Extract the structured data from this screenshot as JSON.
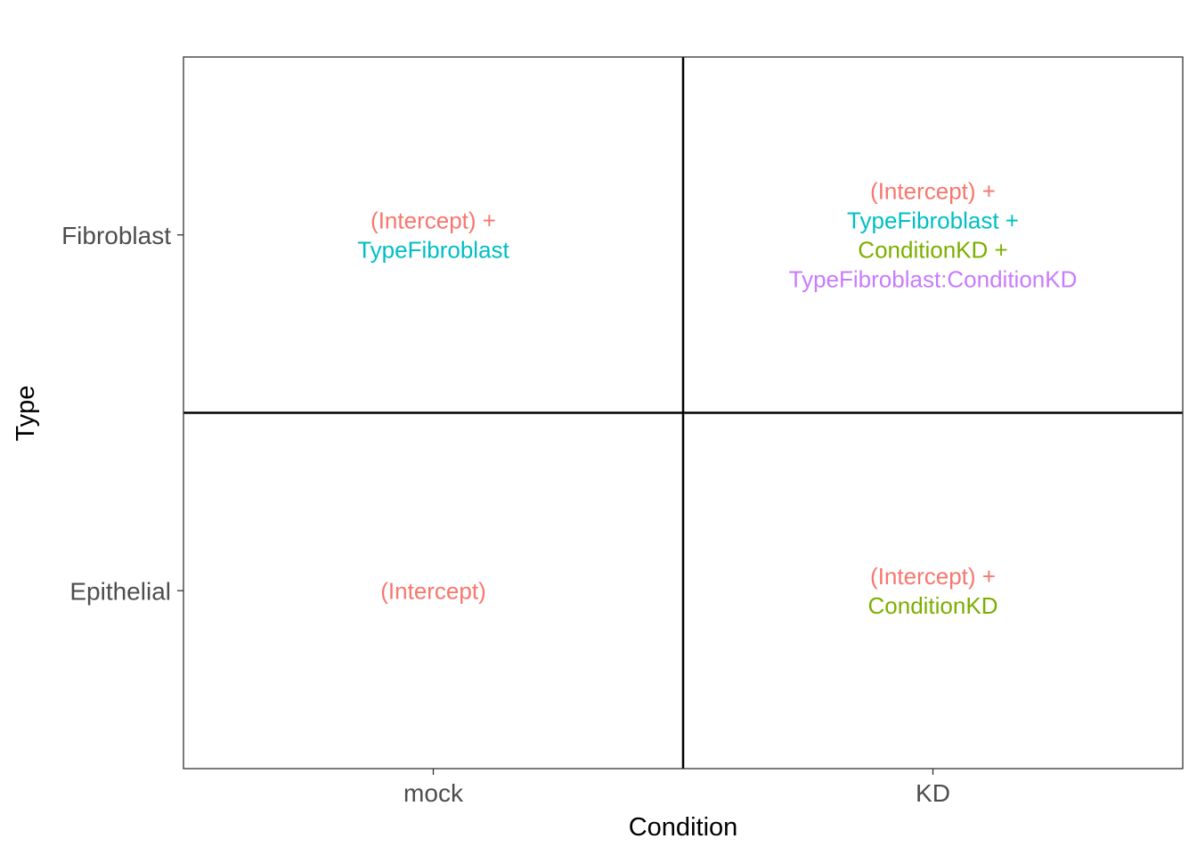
{
  "chart_data": {
    "type": "table",
    "xlabel": "Condition",
    "ylabel": "Type",
    "x_categories": [
      "mock",
      "KD"
    ],
    "y_categories": [
      "Epithelial",
      "Fibroblast"
    ],
    "grid": false,
    "colors": {
      "(Intercept)": "#f8766d",
      "TypeFibroblast": "#00bfc4",
      "ConditionKD": "#7cae00",
      "TypeFibroblast:ConditionKD": "#c77cff"
    },
    "cells": [
      {
        "x": "mock",
        "y": "Fibroblast",
        "lines": [
          "(Intercept) +",
          "TypeFibroblast"
        ],
        "terms": [
          "(Intercept)",
          "TypeFibroblast"
        ]
      },
      {
        "x": "KD",
        "y": "Fibroblast",
        "lines": [
          "(Intercept) +",
          "TypeFibroblast +",
          "ConditionKD +",
          "TypeFibroblast:ConditionKD"
        ],
        "terms": [
          "(Intercept)",
          "TypeFibroblast",
          "ConditionKD",
          "TypeFibroblast:ConditionKD"
        ]
      },
      {
        "x": "mock",
        "y": "Epithelial",
        "lines": [
          "(Intercept)"
        ],
        "terms": [
          "(Intercept)"
        ]
      },
      {
        "x": "KD",
        "y": "Epithelial",
        "lines": [
          "(Intercept) +",
          "ConditionKD"
        ],
        "terms": [
          "(Intercept)",
          "ConditionKD"
        ]
      }
    ]
  }
}
